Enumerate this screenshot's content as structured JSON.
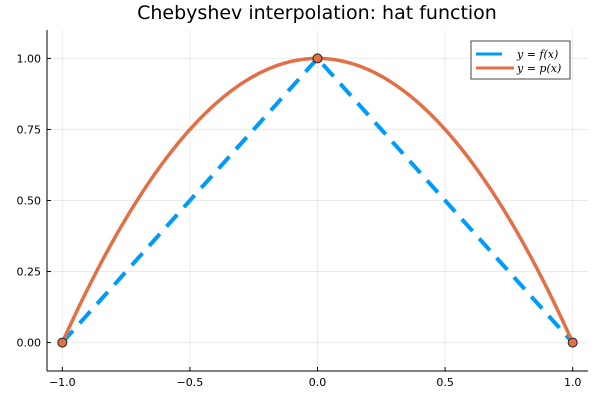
{
  "chart_data": {
    "type": "line",
    "title": "Chebyshev interpolation: hat function",
    "xlabel": "",
    "ylabel": "",
    "xlim": [
      -1.06,
      1.06
    ],
    "ylim": [
      -0.1,
      1.1
    ],
    "xticks": [
      -1.0,
      -0.5,
      0.0,
      0.5,
      1.0
    ],
    "xtick_labels": [
      "−1.0",
      "−0.5",
      "0.0",
      "0.5",
      "1.0"
    ],
    "yticks": [
      0.0,
      0.25,
      0.5,
      0.75,
      1.0
    ],
    "ytick_labels": [
      "0.00",
      "0.25",
      "0.50",
      "0.75",
      "1.00"
    ],
    "grid": true,
    "legend_position": "top-right",
    "series": [
      {
        "name": "y = f(x)",
        "function": "1 - |x|",
        "style": "dashed",
        "color": "#009AFA",
        "x": [
          -1,
          0,
          1
        ],
        "y": [
          0,
          1,
          0
        ]
      },
      {
        "name": "y = p(x)",
        "function": "1 - x^2",
        "style": "solid",
        "color": "#E26F46",
        "x": [
          -1,
          -0.5,
          0,
          0.5,
          1
        ],
        "y": [
          0,
          0.75,
          1,
          0.75,
          0
        ]
      }
    ],
    "markers": {
      "name": "nodes",
      "color": "#E26F46",
      "x": [
        -1,
        0,
        1
      ],
      "y": [
        0,
        1,
        0
      ]
    }
  }
}
